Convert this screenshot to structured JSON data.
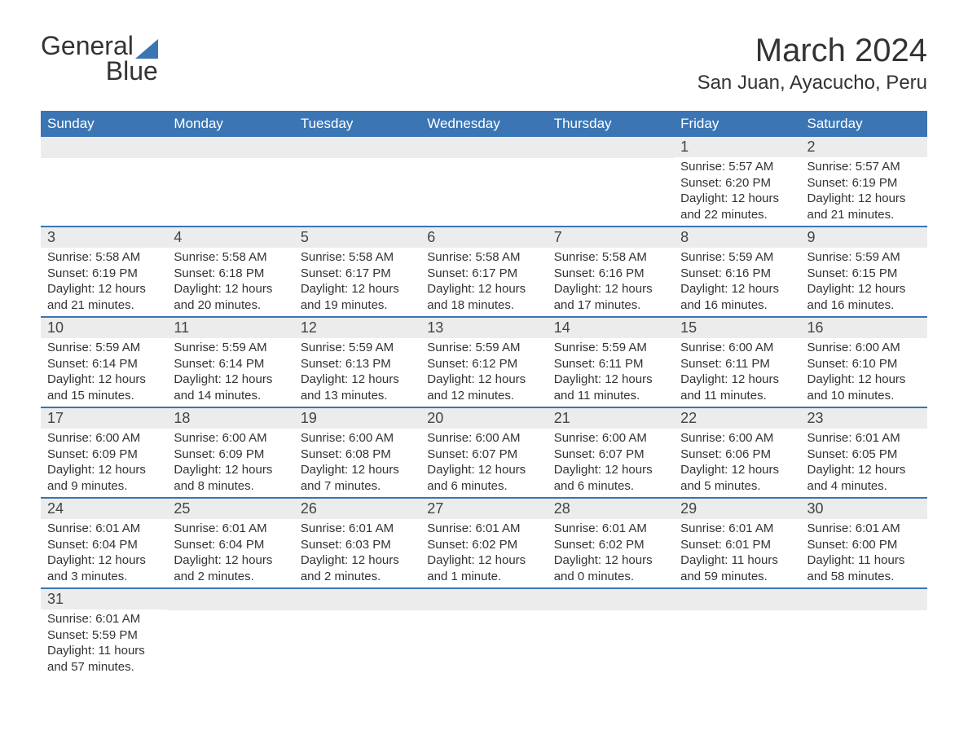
{
  "logo": {
    "text_general": "General",
    "text_blue": "Blue"
  },
  "header": {
    "month_title": "March 2024",
    "location": "San Juan, Ayacucho, Peru"
  },
  "colors": {
    "header_bg": "#3b75b3",
    "header_text": "#ffffff",
    "day_number_bg": "#ececec",
    "border": "#3b75b3",
    "text": "#333333",
    "page_bg": "#ffffff"
  },
  "day_labels": [
    "Sunday",
    "Monday",
    "Tuesday",
    "Wednesday",
    "Thursday",
    "Friday",
    "Saturday"
  ],
  "weeks": [
    [
      {
        "day": "",
        "sunrise": "",
        "sunset": "",
        "daylight": ""
      },
      {
        "day": "",
        "sunrise": "",
        "sunset": "",
        "daylight": ""
      },
      {
        "day": "",
        "sunrise": "",
        "sunset": "",
        "daylight": ""
      },
      {
        "day": "",
        "sunrise": "",
        "sunset": "",
        "daylight": ""
      },
      {
        "day": "",
        "sunrise": "",
        "sunset": "",
        "daylight": ""
      },
      {
        "day": "1",
        "sunrise": "Sunrise: 5:57 AM",
        "sunset": "Sunset: 6:20 PM",
        "daylight": "Daylight: 12 hours and 22 minutes."
      },
      {
        "day": "2",
        "sunrise": "Sunrise: 5:57 AM",
        "sunset": "Sunset: 6:19 PM",
        "daylight": "Daylight: 12 hours and 21 minutes."
      }
    ],
    [
      {
        "day": "3",
        "sunrise": "Sunrise: 5:58 AM",
        "sunset": "Sunset: 6:19 PM",
        "daylight": "Daylight: 12 hours and 21 minutes."
      },
      {
        "day": "4",
        "sunrise": "Sunrise: 5:58 AM",
        "sunset": "Sunset: 6:18 PM",
        "daylight": "Daylight: 12 hours and 20 minutes."
      },
      {
        "day": "5",
        "sunrise": "Sunrise: 5:58 AM",
        "sunset": "Sunset: 6:17 PM",
        "daylight": "Daylight: 12 hours and 19 minutes."
      },
      {
        "day": "6",
        "sunrise": "Sunrise: 5:58 AM",
        "sunset": "Sunset: 6:17 PM",
        "daylight": "Daylight: 12 hours and 18 minutes."
      },
      {
        "day": "7",
        "sunrise": "Sunrise: 5:58 AM",
        "sunset": "Sunset: 6:16 PM",
        "daylight": "Daylight: 12 hours and 17 minutes."
      },
      {
        "day": "8",
        "sunrise": "Sunrise: 5:59 AM",
        "sunset": "Sunset: 6:16 PM",
        "daylight": "Daylight: 12 hours and 16 minutes."
      },
      {
        "day": "9",
        "sunrise": "Sunrise: 5:59 AM",
        "sunset": "Sunset: 6:15 PM",
        "daylight": "Daylight: 12 hours and 16 minutes."
      }
    ],
    [
      {
        "day": "10",
        "sunrise": "Sunrise: 5:59 AM",
        "sunset": "Sunset: 6:14 PM",
        "daylight": "Daylight: 12 hours and 15 minutes."
      },
      {
        "day": "11",
        "sunrise": "Sunrise: 5:59 AM",
        "sunset": "Sunset: 6:14 PM",
        "daylight": "Daylight: 12 hours and 14 minutes."
      },
      {
        "day": "12",
        "sunrise": "Sunrise: 5:59 AM",
        "sunset": "Sunset: 6:13 PM",
        "daylight": "Daylight: 12 hours and 13 minutes."
      },
      {
        "day": "13",
        "sunrise": "Sunrise: 5:59 AM",
        "sunset": "Sunset: 6:12 PM",
        "daylight": "Daylight: 12 hours and 12 minutes."
      },
      {
        "day": "14",
        "sunrise": "Sunrise: 5:59 AM",
        "sunset": "Sunset: 6:11 PM",
        "daylight": "Daylight: 12 hours and 11 minutes."
      },
      {
        "day": "15",
        "sunrise": "Sunrise: 6:00 AM",
        "sunset": "Sunset: 6:11 PM",
        "daylight": "Daylight: 12 hours and 11 minutes."
      },
      {
        "day": "16",
        "sunrise": "Sunrise: 6:00 AM",
        "sunset": "Sunset: 6:10 PM",
        "daylight": "Daylight: 12 hours and 10 minutes."
      }
    ],
    [
      {
        "day": "17",
        "sunrise": "Sunrise: 6:00 AM",
        "sunset": "Sunset: 6:09 PM",
        "daylight": "Daylight: 12 hours and 9 minutes."
      },
      {
        "day": "18",
        "sunrise": "Sunrise: 6:00 AM",
        "sunset": "Sunset: 6:09 PM",
        "daylight": "Daylight: 12 hours and 8 minutes."
      },
      {
        "day": "19",
        "sunrise": "Sunrise: 6:00 AM",
        "sunset": "Sunset: 6:08 PM",
        "daylight": "Daylight: 12 hours and 7 minutes."
      },
      {
        "day": "20",
        "sunrise": "Sunrise: 6:00 AM",
        "sunset": "Sunset: 6:07 PM",
        "daylight": "Daylight: 12 hours and 6 minutes."
      },
      {
        "day": "21",
        "sunrise": "Sunrise: 6:00 AM",
        "sunset": "Sunset: 6:07 PM",
        "daylight": "Daylight: 12 hours and 6 minutes."
      },
      {
        "day": "22",
        "sunrise": "Sunrise: 6:00 AM",
        "sunset": "Sunset: 6:06 PM",
        "daylight": "Daylight: 12 hours and 5 minutes."
      },
      {
        "day": "23",
        "sunrise": "Sunrise: 6:01 AM",
        "sunset": "Sunset: 6:05 PM",
        "daylight": "Daylight: 12 hours and 4 minutes."
      }
    ],
    [
      {
        "day": "24",
        "sunrise": "Sunrise: 6:01 AM",
        "sunset": "Sunset: 6:04 PM",
        "daylight": "Daylight: 12 hours and 3 minutes."
      },
      {
        "day": "25",
        "sunrise": "Sunrise: 6:01 AM",
        "sunset": "Sunset: 6:04 PM",
        "daylight": "Daylight: 12 hours and 2 minutes."
      },
      {
        "day": "26",
        "sunrise": "Sunrise: 6:01 AM",
        "sunset": "Sunset: 6:03 PM",
        "daylight": "Daylight: 12 hours and 2 minutes."
      },
      {
        "day": "27",
        "sunrise": "Sunrise: 6:01 AM",
        "sunset": "Sunset: 6:02 PM",
        "daylight": "Daylight: 12 hours and 1 minute."
      },
      {
        "day": "28",
        "sunrise": "Sunrise: 6:01 AM",
        "sunset": "Sunset: 6:02 PM",
        "daylight": "Daylight: 12 hours and 0 minutes."
      },
      {
        "day": "29",
        "sunrise": "Sunrise: 6:01 AM",
        "sunset": "Sunset: 6:01 PM",
        "daylight": "Daylight: 11 hours and 59 minutes."
      },
      {
        "day": "30",
        "sunrise": "Sunrise: 6:01 AM",
        "sunset": "Sunset: 6:00 PM",
        "daylight": "Daylight: 11 hours and 58 minutes."
      }
    ],
    [
      {
        "day": "31",
        "sunrise": "Sunrise: 6:01 AM",
        "sunset": "Sunset: 5:59 PM",
        "daylight": "Daylight: 11 hours and 57 minutes."
      },
      {
        "day": "",
        "sunrise": "",
        "sunset": "",
        "daylight": ""
      },
      {
        "day": "",
        "sunrise": "",
        "sunset": "",
        "daylight": ""
      },
      {
        "day": "",
        "sunrise": "",
        "sunset": "",
        "daylight": ""
      },
      {
        "day": "",
        "sunrise": "",
        "sunset": "",
        "daylight": ""
      },
      {
        "day": "",
        "sunrise": "",
        "sunset": "",
        "daylight": ""
      },
      {
        "day": "",
        "sunrise": "",
        "sunset": "",
        "daylight": ""
      }
    ]
  ]
}
